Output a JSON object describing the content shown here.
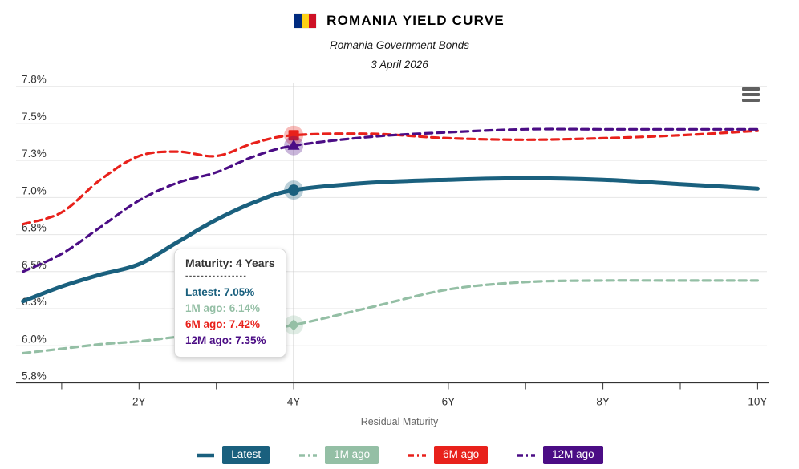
{
  "header": {
    "title": "ROMANIA YIELD CURVE",
    "subtitle": "Romania Government Bonds",
    "date": "3 April 2026",
    "flag_colors": [
      "#002B7F",
      "#FCD116",
      "#CE1126"
    ]
  },
  "menu": {
    "icon": "hamburger-menu-icon"
  },
  "chart_data": {
    "type": "line",
    "xlabel": "Residual Maturity",
    "x_unit": "Years",
    "grid": "horizontal",
    "legend_position": "bottom",
    "xlim": [
      0.41,
      10.12
    ],
    "ylim": [
      5.75,
      7.77
    ],
    "x": [
      0.5,
      1,
      1.5,
      2,
      2.5,
      3,
      3.5,
      4,
      5,
      6,
      7,
      8,
      9,
      10
    ],
    "series": [
      {
        "name": "Latest",
        "color": "#1A607E",
        "dash": "solid",
        "marker": "circle",
        "values": [
          6.3,
          6.4,
          6.48,
          6.55,
          6.7,
          6.85,
          6.97,
          7.05,
          7.1,
          7.12,
          7.13,
          7.12,
          7.09,
          7.06
        ]
      },
      {
        "name": "1M ago",
        "color": "#94BFA5",
        "dash": "dashed",
        "marker": "diamond",
        "values": [
          5.95,
          5.98,
          6.01,
          6.03,
          6.06,
          6.08,
          6.11,
          6.14,
          6.26,
          6.38,
          6.43,
          6.44,
          6.44,
          6.44
        ]
      },
      {
        "name": "6M ago",
        "color": "#E8211B",
        "dash": "dashed",
        "marker": "square",
        "values": [
          6.82,
          6.9,
          7.12,
          7.28,
          7.31,
          7.28,
          7.37,
          7.42,
          7.43,
          7.4,
          7.39,
          7.4,
          7.42,
          7.45
        ]
      },
      {
        "name": "12M ago",
        "color": "#4B0D85",
        "dash": "dashed",
        "marker": "triangle",
        "values": [
          6.5,
          6.62,
          6.8,
          6.98,
          7.1,
          7.17,
          7.28,
          7.35,
          7.41,
          7.44,
          7.46,
          7.46,
          7.46,
          7.46
        ]
      }
    ],
    "yticks": {
      "values": [
        5.75,
        6.0,
        6.25,
        6.5,
        6.75,
        7.0,
        7.25,
        7.5,
        7.75
      ],
      "labels": [
        "5.8%",
        "6.0%",
        "6.3%",
        "6.5%",
        "6.8%",
        "7.0%",
        "7.3%",
        "7.5%",
        "7.8%"
      ]
    },
    "xticks": {
      "values": [
        1,
        2,
        3,
        4,
        5,
        6,
        7,
        8,
        9,
        10
      ],
      "labels": [
        "",
        "2Y",
        "",
        "4Y",
        "",
        "6Y",
        "",
        "8Y",
        "",
        "10Y"
      ]
    },
    "crosshair_x": 4,
    "colors": {
      "grid": "#e6e6e6",
      "crosshair": "#cccccc",
      "axis": "#333333",
      "tick_label": "#333333"
    }
  },
  "tooltip": {
    "title": "Maturity: 4 Years",
    "separator": "----------------",
    "rows": [
      {
        "series": "Latest",
        "label": "Latest",
        "value": "7.05%"
      },
      {
        "series": "1M ago",
        "label": "1M ago",
        "value": "6.14%"
      },
      {
        "series": "6M ago",
        "label": "6M ago",
        "value": "7.42%"
      },
      {
        "series": "12M ago",
        "label": "12M ago",
        "value": "7.35%"
      }
    ]
  },
  "legend": {
    "items": [
      {
        "series": "Latest",
        "label": "Latest"
      },
      {
        "series": "1M ago",
        "label": "1M ago"
      },
      {
        "series": "6M ago",
        "label": "6M ago"
      },
      {
        "series": "12M ago",
        "label": "12M ago"
      }
    ]
  }
}
